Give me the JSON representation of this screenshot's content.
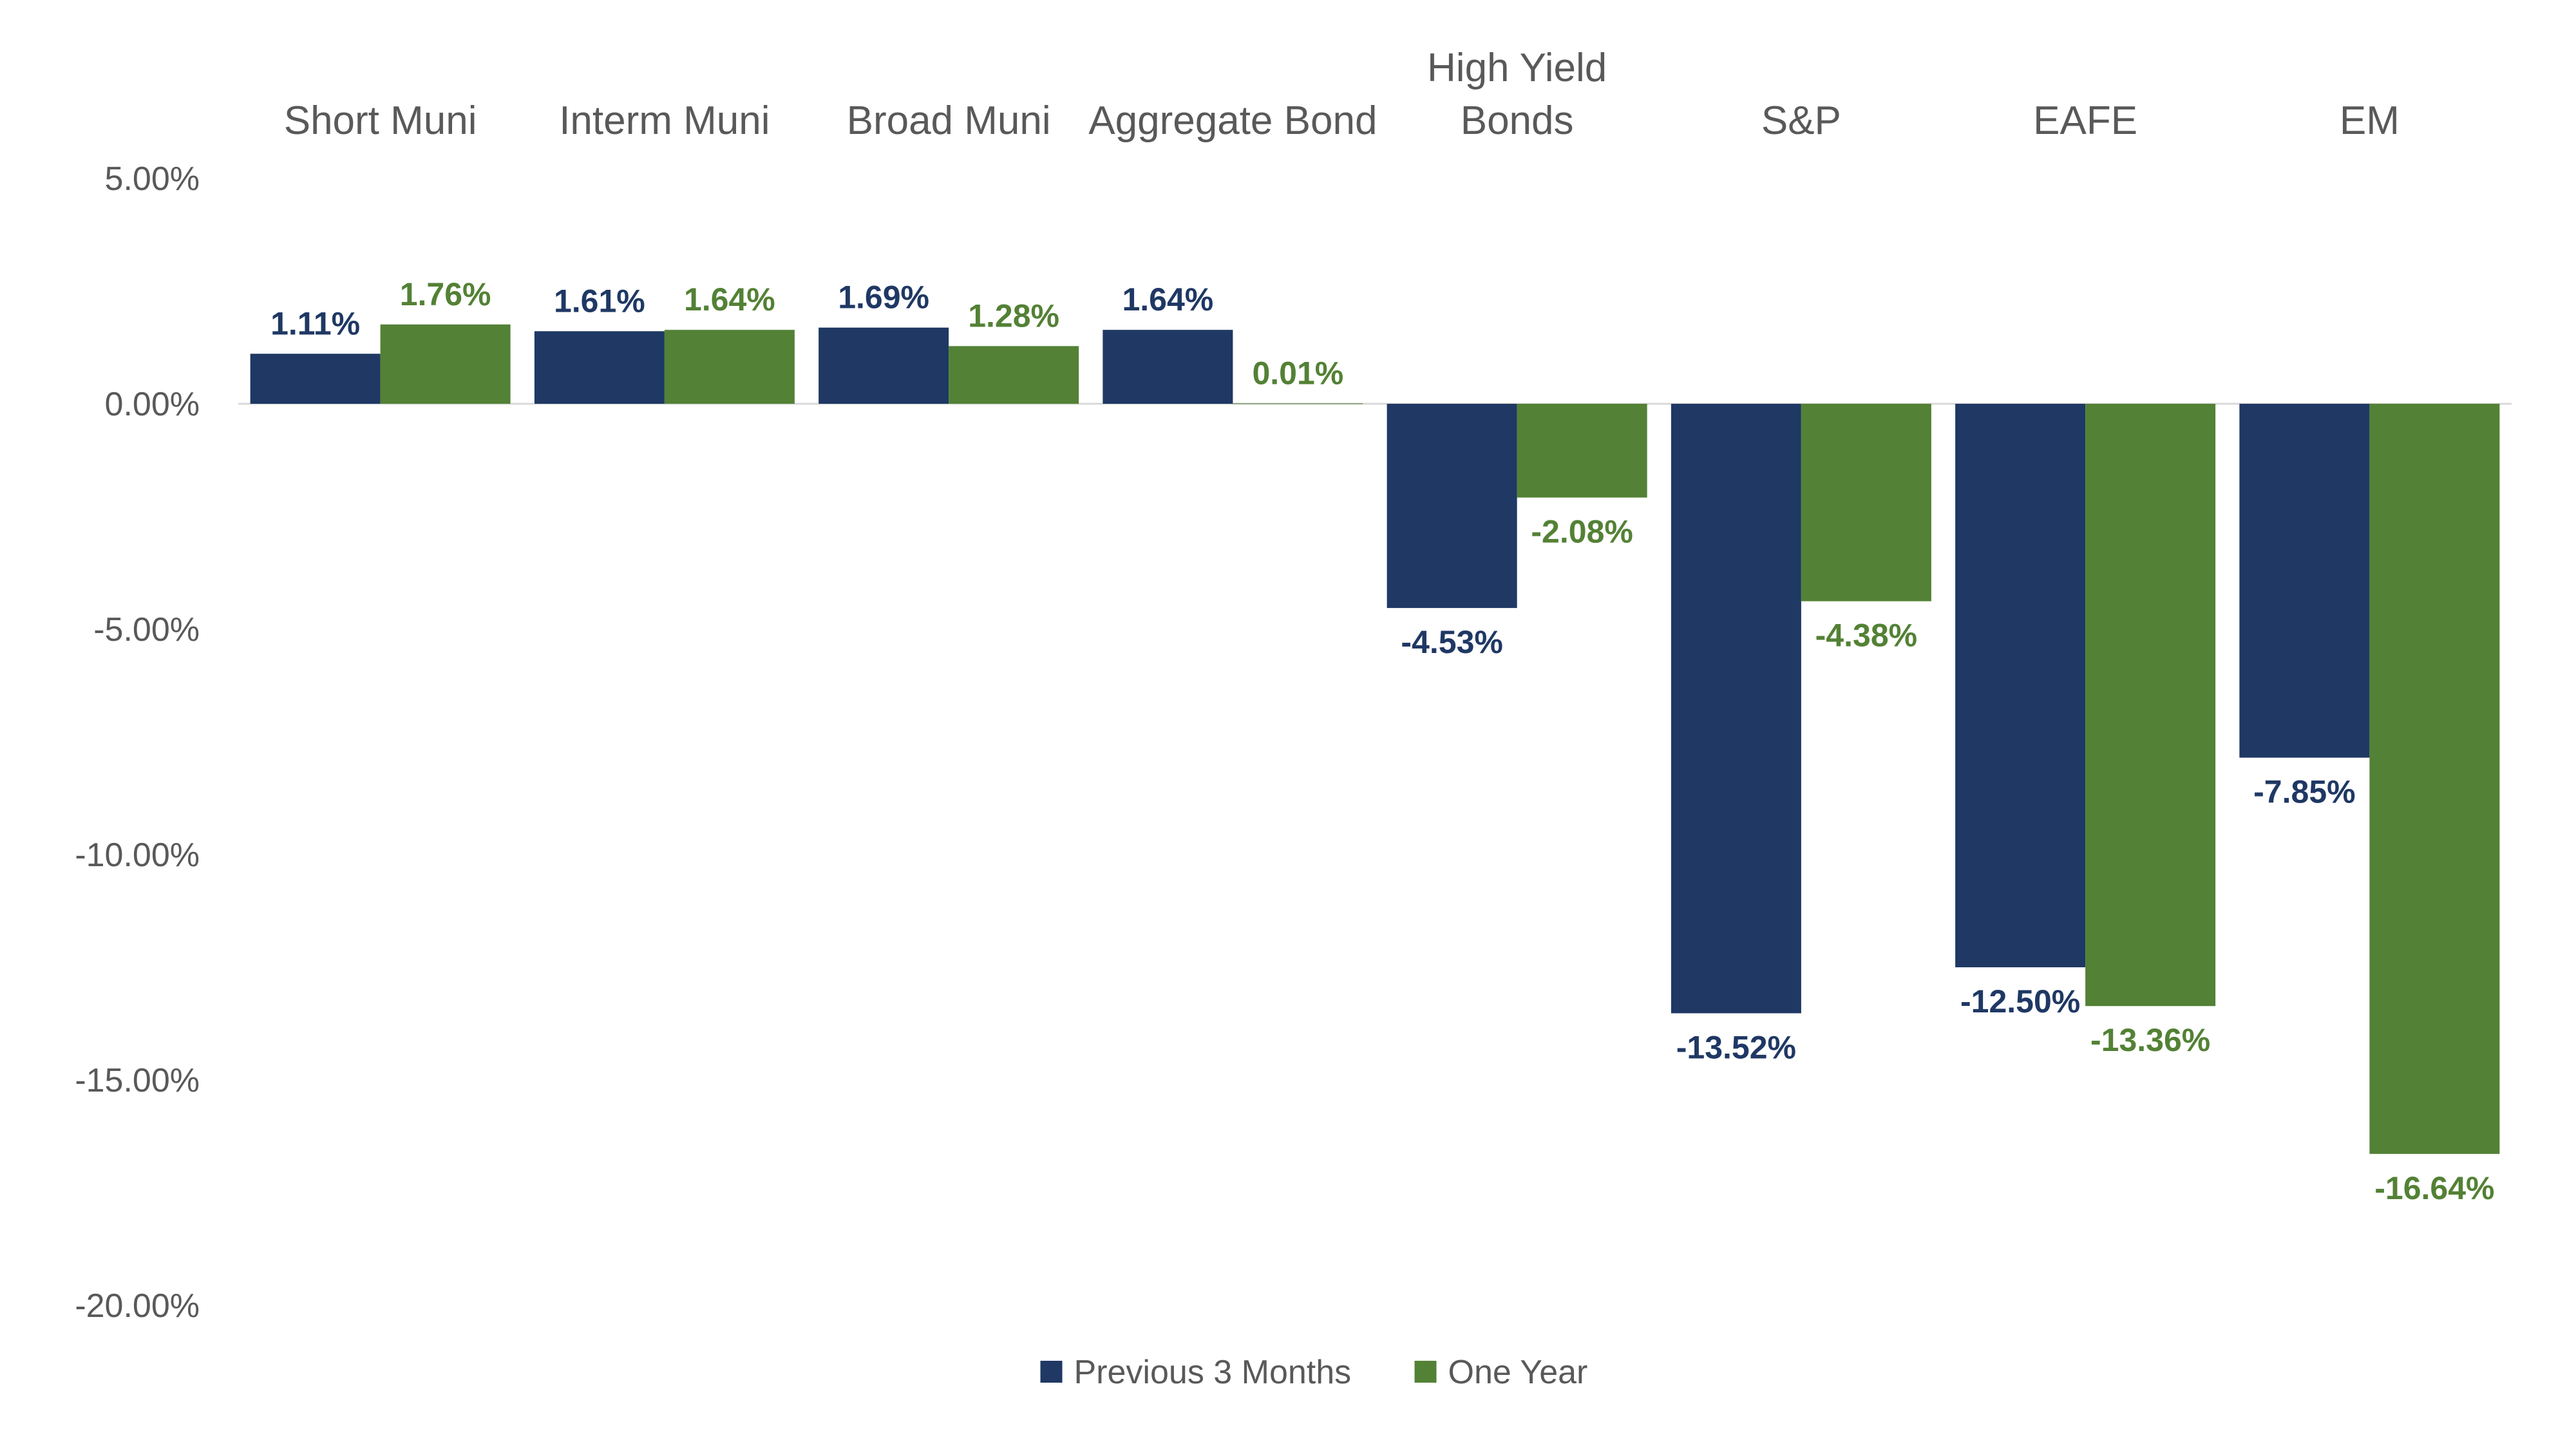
{
  "chart_data": {
    "type": "bar",
    "categories": [
      [
        "Short Muni"
      ],
      [
        "Interm Muni"
      ],
      [
        "Broad Muni"
      ],
      [
        "Aggregate Bond"
      ],
      [
        "High Yield",
        "Bonds"
      ],
      [
        "S&P"
      ],
      [
        "EAFE"
      ],
      [
        "EM"
      ]
    ],
    "series": [
      {
        "name": "Previous 3 Months",
        "color": "#1F3864",
        "values": [
          1.11,
          1.61,
          1.69,
          1.64,
          -4.53,
          -13.52,
          -12.5,
          -7.85
        ],
        "labels": [
          "1.11%",
          "1.61%",
          "1.69%",
          "1.64%",
          "-4.53%",
          "-13.52%",
          "-12.50%",
          "-7.85%"
        ]
      },
      {
        "name": "One Year",
        "color": "#538135",
        "values": [
          1.76,
          1.64,
          1.28,
          0.01,
          -2.08,
          -4.38,
          -13.36,
          -16.64
        ],
        "labels": [
          "1.76%",
          "1.64%",
          "1.28%",
          "0.01%",
          "-2.08%",
          "-4.38%",
          "-13.36%",
          "-16.64%"
        ]
      }
    ],
    "yticks": [
      "5.00%",
      "0.00%",
      "-5.00%",
      "-10.00%",
      "-15.00%",
      "-20.00%"
    ],
    "ytick_values": [
      5,
      0,
      -5,
      -10,
      -15,
      -20
    ],
    "ylim": [
      -20,
      5
    ],
    "title": "",
    "xlabel": "",
    "ylabel": "",
    "legend_position": "bottom",
    "category_axis_position": "top",
    "grid": false
  }
}
